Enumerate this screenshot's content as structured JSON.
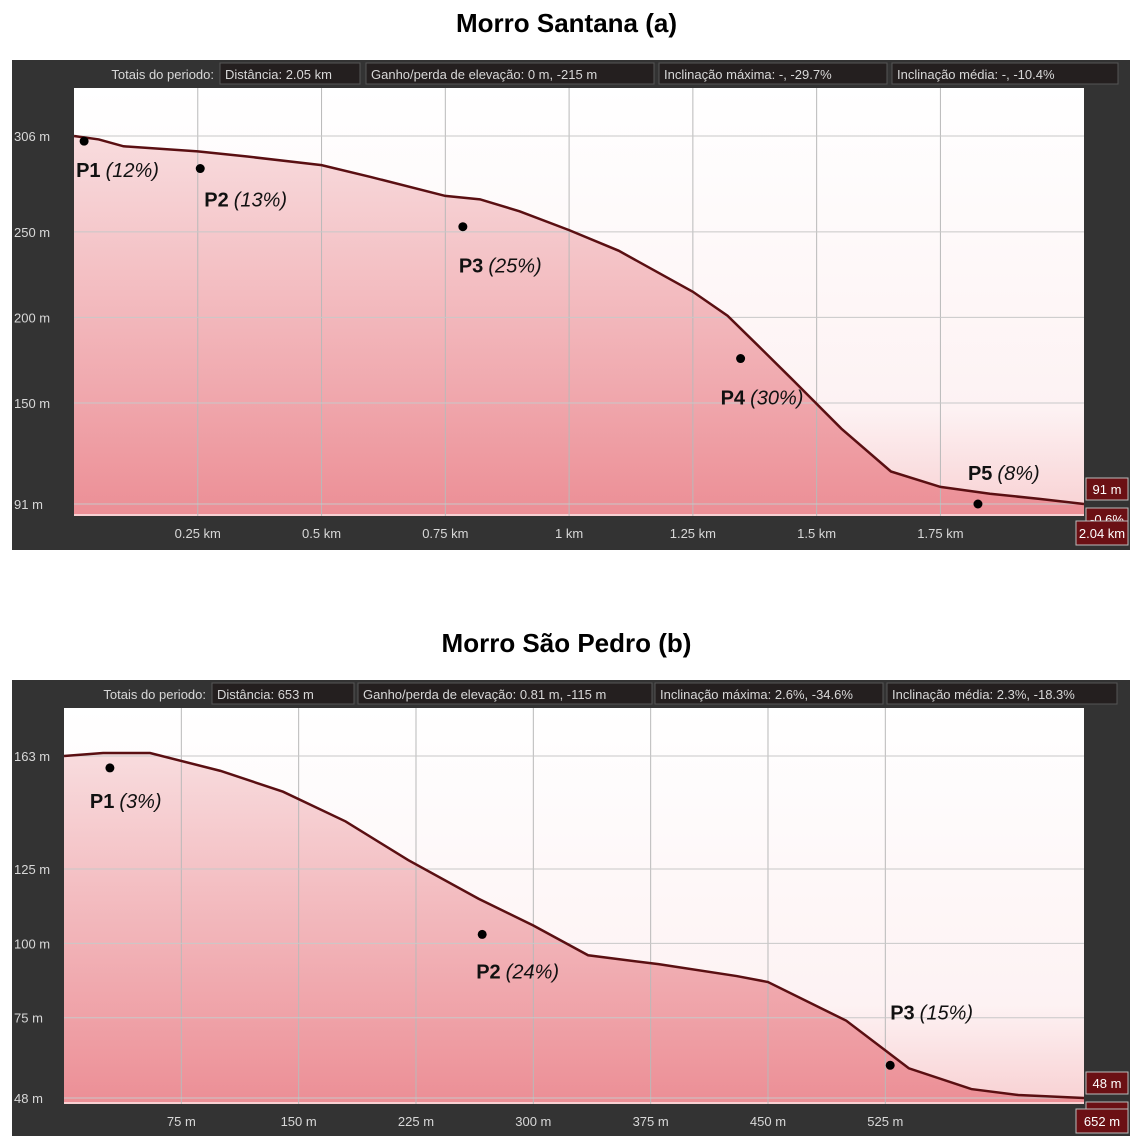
{
  "charts": [
    {
      "title": "Morro Santana (a)",
      "totals": {
        "label": "Totais do periodo:",
        "distance": "Distância: 2.05 km",
        "gain_loss": "Ganho/perda de elevação: 0 m, -215 m",
        "max_slope": "Inclinação máxima: -, -29.7%",
        "avg_slope": "Inclinação média: -, -10.4%"
      },
      "end_labels": {
        "elevation": "91 m",
        "slope": "-0.6%",
        "distance": "2.04 km"
      }
    },
    {
      "title": "Morro São Pedro (b)",
      "totals": {
        "label": "Totais do periodo:",
        "distance": "Distância: 653 m",
        "gain_loss": "Ganho/perda de elevação: 0.81 m, -115 m",
        "max_slope": "Inclinação máxima: 2.6%, -34.6%",
        "avg_slope": "Inclinação média: 2.3%, -18.3%"
      },
      "end_labels": {
        "elevation": "48 m",
        "slope": "-0.4%",
        "distance": "652 m"
      }
    }
  ],
  "chart_data": [
    {
      "type": "area",
      "title": "Morro Santana (a)",
      "xlabel": "",
      "ylabel": "",
      "x_unit": "km",
      "y_unit": "m",
      "xlim": [
        0,
        2.04
      ],
      "ylim": [
        91,
        306
      ],
      "x_ticks": [
        0.25,
        0.5,
        0.75,
        1,
        1.25,
        1.5,
        1.75
      ],
      "x_tick_labels": [
        "0.25 km",
        "0.5 km",
        "0.75 km",
        "1 km",
        "1.25 km",
        "1.5 km",
        "1.75 km"
      ],
      "y_ticks": [
        306,
        250,
        200,
        150,
        91
      ],
      "y_tick_labels": [
        "306 m",
        "250 m",
        "200 m",
        "150 m",
        "91 m"
      ],
      "grid": true,
      "series": [
        {
          "x": [
            0,
            0.05,
            0.1,
            0.25,
            0.35,
            0.5,
            0.6,
            0.75,
            0.82,
            0.9,
            1,
            1.1,
            1.25,
            1.32,
            1.38,
            1.45,
            1.55,
            1.65,
            1.75,
            1.85,
            1.95,
            2.04
          ],
          "y": [
            306,
            304,
            300,
            297,
            294,
            289,
            282,
            271,
            269,
            262,
            251,
            239,
            215,
            201,
            184,
            164,
            135,
            110,
            101,
            97,
            94,
            91
          ]
        }
      ],
      "points": [
        {
          "name": "P1",
          "pct": "(12%)",
          "x": 0.01,
          "y": 303
        },
        {
          "name": "P2",
          "pct": "(13%)",
          "x": 0.125,
          "y": 287
        },
        {
          "name": "P3",
          "pct": "(25%)",
          "x": 0.385,
          "y": 253
        },
        {
          "name": "P4",
          "pct": "(30%)",
          "x": 0.66,
          "y": 176
        },
        {
          "name": "P5",
          "pct": "(8%)",
          "x": 0.895,
          "y": 91
        }
      ]
    },
    {
      "type": "area",
      "title": "Morro São Pedro (b)",
      "xlabel": "",
      "ylabel": "",
      "x_unit": "m",
      "y_unit": "m",
      "xlim": [
        0,
        652
      ],
      "ylim": [
        48,
        163
      ],
      "x_ticks": [
        75,
        150,
        225,
        300,
        375,
        450,
        525
      ],
      "x_tick_labels": [
        "75 m",
        "150 m",
        "225 m",
        "300 m",
        "375 m",
        "450 m",
        "525 m"
      ],
      "y_ticks": [
        163,
        125,
        100,
        75,
        48
      ],
      "y_tick_labels": [
        "163 m",
        "125 m",
        "100 m",
        "75 m",
        "48 m"
      ],
      "grid": true,
      "series": [
        {
          "x": [
            0,
            25,
            55,
            100,
            140,
            180,
            220,
            265,
            300,
            335,
            380,
            430,
            450,
            500,
            540,
            580,
            610,
            652
          ],
          "y": [
            163,
            164,
            164,
            158,
            151,
            141,
            128,
            115,
            106,
            96,
            93,
            89,
            87,
            74,
            58,
            51,
            49,
            48
          ]
        }
      ],
      "points": [
        {
          "name": "P1",
          "pct": "(3%)",
          "x": 0.045,
          "y": 159
        },
        {
          "name": "P2",
          "pct": "(24%)",
          "x": 0.41,
          "y": 103
        },
        {
          "name": "P3",
          "pct": "(15%)",
          "x": 0.81,
          "y": 59
        }
      ]
    }
  ],
  "colors": {
    "panel": "#333333",
    "plot_top": "#ffffff",
    "plot_bottom": "#f8d0d2",
    "area_top": "#f8dcde",
    "area_bottom": "#ec8f96",
    "line": "#5a0f12",
    "label_box": "#6b1014",
    "header_box": "#241f1f",
    "axis_text": "#d8d8d8"
  }
}
